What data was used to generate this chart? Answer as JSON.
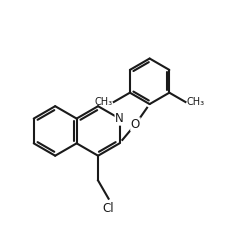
{
  "background_color": "#ffffff",
  "line_color": "#1a1a1a",
  "line_width": 1.5,
  "text_color": "#1a1a1a",
  "font_size": 8.5,
  "figsize": [
    2.49,
    2.52
  ],
  "dpi": 100,
  "label_N": "N",
  "label_O": "O",
  "label_Cl": "Cl",
  "xlim": [
    0,
    10
  ],
  "ylim": [
    0,
    10
  ]
}
